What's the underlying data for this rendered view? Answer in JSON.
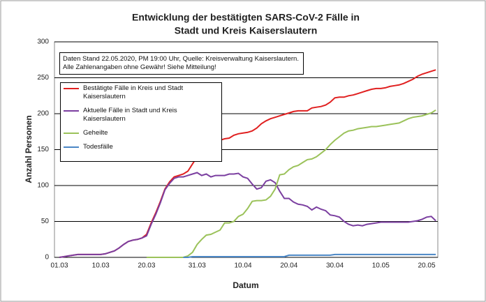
{
  "chart_data": {
    "type": "line",
    "title_lines": [
      "Entwicklung der bestätigten SARS-CoV-2 Fälle in",
      "Stadt und Kreis Kaiserslautern"
    ],
    "annotation": "Daten Stand 22.05.2020, PM 19:00 Uhr, Quelle: Kreisverwaltung Kaiserslautern. Alle Zahlenangaben ohne Gewähr! Siehe Mitteilung!",
    "x_label": "Datum",
    "y_label": "Anzahl Personen",
    "categories": [
      "01.03",
      null,
      null,
      null,
      null,
      null,
      null,
      null,
      null,
      "10.03",
      null,
      null,
      null,
      null,
      null,
      null,
      null,
      null,
      null,
      "20.03",
      null,
      null,
      null,
      null,
      null,
      null,
      null,
      null,
      null,
      null,
      "31.03",
      null,
      null,
      null,
      null,
      null,
      null,
      null,
      null,
      null,
      "10.04",
      null,
      null,
      null,
      null,
      null,
      null,
      null,
      null,
      null,
      "20.04",
      null,
      null,
      null,
      null,
      null,
      null,
      null,
      null,
      null,
      "30.04",
      null,
      null,
      null,
      null,
      null,
      null,
      null,
      null,
      null,
      "10.05",
      null,
      null,
      null,
      null,
      null,
      null,
      null,
      null,
      null,
      "20.05",
      null,
      null
    ],
    "ylim": [
      0,
      300
    ],
    "yticks": [
      0,
      50,
      100,
      150,
      200,
      250,
      300
    ],
    "grid": true,
    "series": [
      {
        "name": "Bestätigte Fälle in Kreis und Stadt Kaiserslautern",
        "color": "#e02020",
        "values": [
          0,
          1,
          2,
          3,
          4,
          4,
          4,
          4,
          4,
          4,
          5,
          7,
          9,
          13,
          18,
          22,
          24,
          25,
          27,
          32,
          48,
          62,
          78,
          95,
          105,
          112,
          114,
          116,
          120,
          130,
          140,
          148,
          152,
          150,
          155,
          163,
          165,
          166,
          170,
          172,
          173,
          174,
          176,
          180,
          186,
          190,
          193,
          195,
          197,
          199,
          201,
          203,
          204,
          204,
          204,
          208,
          209,
          210,
          212,
          216,
          222,
          223,
          223,
          225,
          226,
          228,
          230,
          232,
          234,
          235,
          235,
          236,
          238,
          239,
          240,
          242,
          245,
          248,
          252,
          255,
          257,
          259,
          261
        ]
      },
      {
        "name": "Aktuelle Fälle in Stadt und Kreis Kaiserslautern",
        "color": "#7b3fa0",
        "values": [
          0,
          1,
          2,
          3,
          4,
          4,
          4,
          4,
          4,
          4,
          5,
          7,
          9,
          13,
          18,
          22,
          24,
          25,
          27,
          30,
          46,
          60,
          76,
          94,
          103,
          110,
          112,
          112,
          114,
          116,
          118,
          114,
          116,
          112,
          114,
          114,
          114,
          116,
          116,
          117,
          112,
          110,
          102,
          95,
          97,
          106,
          108,
          104,
          92,
          82,
          82,
          77,
          74,
          73,
          71,
          66,
          70,
          67,
          65,
          59,
          58,
          56,
          50,
          46,
          44,
          45,
          44,
          46,
          47,
          48,
          49,
          49,
          49,
          49,
          49,
          49,
          49,
          50,
          51,
          53,
          56,
          57,
          51
        ]
      },
      {
        "name": "Geheilte",
        "color": "#9bc25a",
        "values": [
          null,
          null,
          null,
          null,
          null,
          null,
          null,
          null,
          null,
          null,
          null,
          null,
          null,
          null,
          null,
          null,
          null,
          null,
          null,
          0,
          0,
          0,
          0,
          0,
          0,
          0,
          0,
          0,
          2,
          7,
          18,
          25,
          31,
          32,
          35,
          38,
          48,
          48,
          50,
          57,
          60,
          68,
          78,
          79,
          79,
          80,
          85,
          95,
          115,
          116,
          122,
          126,
          128,
          132,
          136,
          137,
          140,
          145,
          150,
          157,
          163,
          168,
          173,
          176,
          177,
          179,
          180,
          181,
          182,
          182,
          183,
          184,
          185,
          186,
          187,
          190,
          193,
          195,
          196,
          197,
          199,
          201,
          205
        ]
      },
      {
        "name": "Todesfälle",
        "color": "#4a86c5",
        "values": [
          null,
          null,
          null,
          null,
          null,
          null,
          null,
          null,
          null,
          null,
          null,
          null,
          null,
          null,
          null,
          null,
          null,
          null,
          null,
          null,
          null,
          null,
          null,
          null,
          null,
          null,
          null,
          0,
          0,
          1,
          1,
          1,
          1,
          1,
          1,
          1,
          1,
          1,
          1,
          1,
          1,
          1,
          1,
          1,
          1,
          1,
          1,
          1,
          1,
          1,
          3,
          3,
          3,
          3,
          3,
          3,
          3,
          3,
          3,
          3,
          4,
          4,
          4,
          4,
          4,
          4,
          4,
          4,
          4,
          4,
          4,
          4,
          4,
          4,
          4,
          4,
          4,
          4,
          4,
          4,
          4,
          4,
          4
        ]
      }
    ]
  }
}
